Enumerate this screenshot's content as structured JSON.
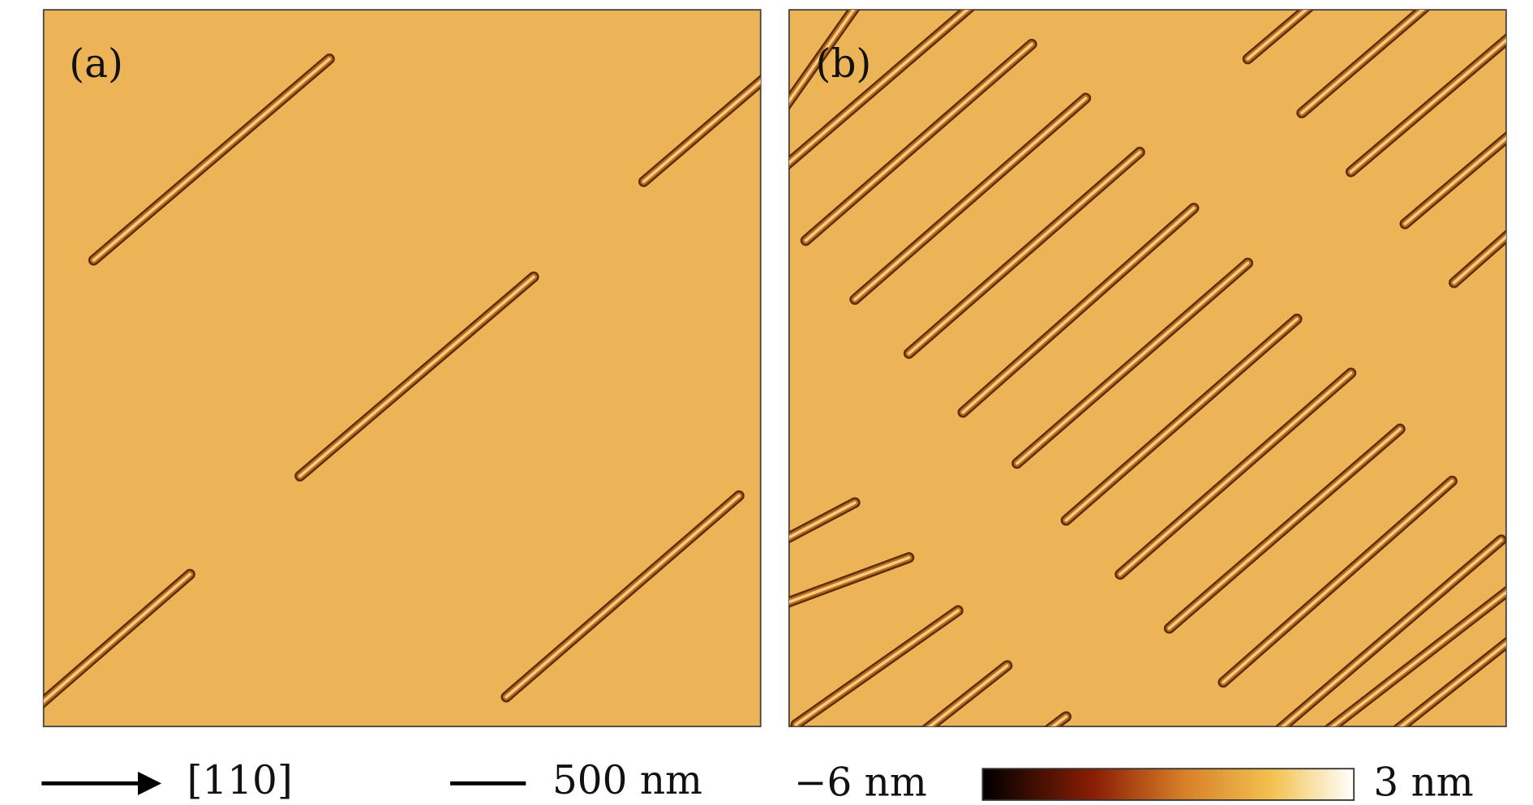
{
  "panels": [
    {
      "label": "(a)"
    },
    {
      "label": "(b)"
    }
  ],
  "legend": {
    "direction": "[110]",
    "scale_bar": "500 nm"
  },
  "colorbar": {
    "min_label": "−6 nm",
    "max_label": "3 nm"
  }
}
